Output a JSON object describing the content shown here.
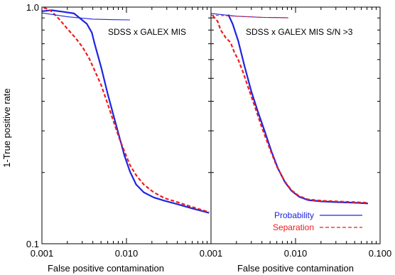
{
  "figure": {
    "ylabel": "1-True positive rate"
  },
  "colors": {
    "probability": "#1f24e0",
    "separation": "#ee1c1c",
    "horizontal_line": "#6b1f7a",
    "axes": "#000000"
  },
  "chart_data": [
    {
      "type": "line",
      "title": "SDSS x GALEX MIS",
      "xlabel": "False positive contamination",
      "ylabel": "1-True positive rate",
      "xscale": "log",
      "yscale": "log",
      "xlim": [
        0.001,
        0.1
      ],
      "ylim": [
        0.1,
        1.0
      ],
      "x_ticks": [
        "0.001",
        "0.010"
      ],
      "y_ticks": [
        "1.0",
        "0.1"
      ],
      "legend": null,
      "series": [
        {
          "name": "Probability",
          "style": "solid",
          "points": [
            [
              0.00098,
              0.96
            ],
            [
              0.0013,
              0.97
            ],
            [
              0.0018,
              0.955
            ],
            [
              0.0024,
              0.94
            ],
            [
              0.0029,
              0.89
            ],
            [
              0.0034,
              0.85
            ],
            [
              0.0039,
              0.78
            ],
            [
              0.0042,
              0.7
            ],
            [
              0.005,
              0.56
            ],
            [
              0.006,
              0.43
            ],
            [
              0.007,
              0.35
            ],
            [
              0.0082,
              0.285
            ],
            [
              0.0095,
              0.235
            ],
            [
              0.011,
              0.202
            ],
            [
              0.013,
              0.178
            ],
            [
              0.016,
              0.165
            ],
            [
              0.021,
              0.157
            ],
            [
              0.028,
              0.152
            ],
            [
              0.04,
              0.147
            ],
            [
              0.06,
              0.141
            ],
            [
              0.095,
              0.135
            ]
          ]
        },
        {
          "name": "Separation",
          "style": "dashed",
          "points": [
            [
              0.0009,
              1.0
            ],
            [
              0.0011,
              0.99
            ],
            [
              0.0013,
              0.96
            ],
            [
              0.0016,
              0.89
            ],
            [
              0.002,
              0.81
            ],
            [
              0.0025,
              0.74
            ],
            [
              0.003,
              0.68
            ],
            [
              0.0036,
              0.61
            ],
            [
              0.0042,
              0.54
            ],
            [
              0.005,
              0.47
            ],
            [
              0.006,
              0.39
            ],
            [
              0.007,
              0.33
            ],
            [
              0.0082,
              0.28
            ],
            [
              0.0095,
              0.245
            ],
            [
              0.011,
              0.215
            ],
            [
              0.013,
              0.195
            ],
            [
              0.016,
              0.178
            ],
            [
              0.021,
              0.165
            ],
            [
              0.028,
              0.156
            ],
            [
              0.04,
              0.15
            ],
            [
              0.06,
              0.143
            ],
            [
              0.095,
              0.136
            ]
          ]
        },
        {
          "name": "",
          "style": "solid-horizontal",
          "points": [
            [
              0.001,
              0.945
            ],
            [
              0.002,
              0.91
            ],
            [
              0.004,
              0.89
            ],
            [
              0.007,
              0.885
            ],
            [
              0.011,
              0.883
            ]
          ]
        },
        {
          "name": "",
          "style": "dashed-horizontal",
          "points": [
            [
              0.0012,
              1.0
            ],
            [
              0.003,
              1.0
            ],
            [
              0.0055,
              1.0
            ],
            [
              0.009,
              1.0
            ]
          ]
        }
      ]
    },
    {
      "type": "line",
      "title": "SDSS x GALEX MIS S/N >3",
      "xlabel": "False positive contamination",
      "xscale": "log",
      "yscale": "log",
      "xlim": [
        0.001,
        0.1
      ],
      "ylim": [
        0.1,
        1.0
      ],
      "x_ticks": [
        "0.001",
        "0.010",
        "0.100"
      ],
      "legend": {
        "position": "bottom-right",
        "entries": [
          "Probability",
          "Separation"
        ]
      },
      "series": [
        {
          "name": "Probability",
          "style": "solid",
          "points": [
            [
              0.0016,
              0.93
            ],
            [
              0.0018,
              0.85
            ],
            [
              0.0021,
              0.72
            ],
            [
              0.0025,
              0.56
            ],
            [
              0.003,
              0.44
            ],
            [
              0.0036,
              0.36
            ],
            [
              0.0043,
              0.3
            ],
            [
              0.0052,
              0.245
            ],
            [
              0.0062,
              0.208
            ],
            [
              0.0075,
              0.182
            ],
            [
              0.009,
              0.167
            ],
            [
              0.011,
              0.158
            ],
            [
              0.014,
              0.153
            ],
            [
              0.02,
              0.151
            ],
            [
              0.03,
              0.15
            ],
            [
              0.05,
              0.149
            ],
            [
              0.072,
              0.148
            ]
          ]
        },
        {
          "name": "Separation",
          "style": "dashed",
          "points": [
            [
              0.00105,
              0.92
            ],
            [
              0.0012,
              0.87
            ],
            [
              0.0013,
              0.8
            ],
            [
              0.0014,
              0.77
            ],
            [
              0.0015,
              0.74
            ],
            [
              0.0017,
              0.71
            ],
            [
              0.0019,
              0.64
            ],
            [
              0.0021,
              0.6
            ],
            [
              0.0024,
              0.53
            ],
            [
              0.0028,
              0.45
            ],
            [
              0.0033,
              0.38
            ],
            [
              0.004,
              0.31
            ],
            [
              0.005,
              0.25
            ],
            [
              0.006,
              0.212
            ],
            [
              0.0075,
              0.183
            ],
            [
              0.009,
              0.168
            ],
            [
              0.011,
              0.159
            ],
            [
              0.014,
              0.154
            ],
            [
              0.02,
              0.152
            ],
            [
              0.03,
              0.151
            ],
            [
              0.05,
              0.15
            ],
            [
              0.072,
              0.149
            ]
          ]
        },
        {
          "name": "",
          "style": "solid-horizontal",
          "points": [
            [
              0.001,
              0.94
            ],
            [
              0.002,
              0.915
            ],
            [
              0.004,
              0.905
            ],
            [
              0.008,
              0.902
            ]
          ]
        },
        {
          "name": "",
          "style": "dashed-horizontal",
          "points": [
            [
              0.001,
              0.925
            ],
            [
              0.002,
              0.915
            ],
            [
              0.004,
              0.905
            ],
            [
              0.0085,
              0.9
            ]
          ]
        }
      ]
    }
  ]
}
